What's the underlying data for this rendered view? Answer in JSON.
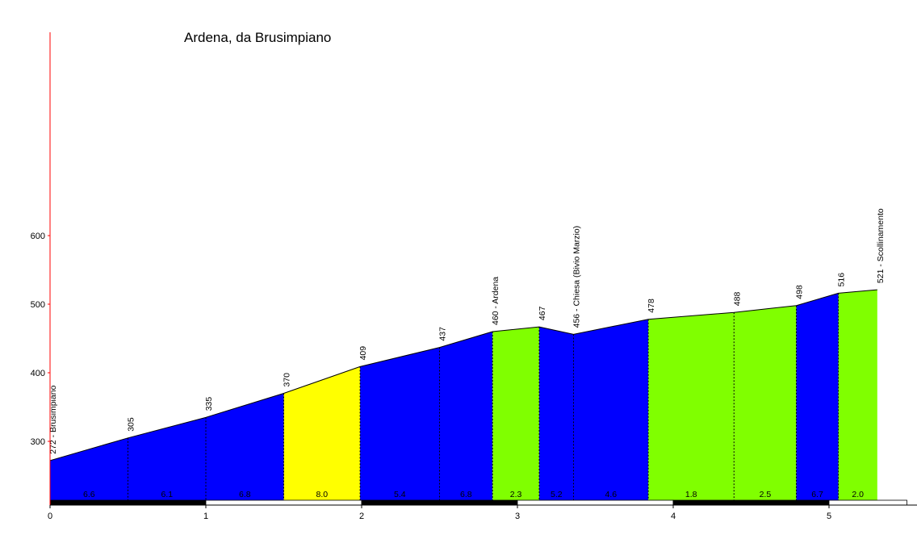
{
  "chart_data": {
    "type": "area",
    "title": "Ardena, da Brusimpiano",
    "xlabel": "",
    "ylabel": "",
    "xlim": [
      0,
      5.5
    ],
    "ylim": [
      258,
      600
    ],
    "x_ticks": [
      0,
      1,
      2,
      3,
      4,
      5
    ],
    "y_ticks": [
      300,
      400,
      500,
      600
    ],
    "profile": [
      {
        "x": 0.0,
        "y": 272,
        "label": "272 - Brusimpiano"
      },
      {
        "x": 0.5,
        "y": 305,
        "label": "305"
      },
      {
        "x": 1.0,
        "y": 335,
        "label": "335"
      },
      {
        "x": 1.5,
        "y": 370,
        "label": "370"
      },
      {
        "x": 1.99,
        "y": 409,
        "label": "409"
      },
      {
        "x": 2.5,
        "y": 437,
        "label": "437"
      },
      {
        "x": 2.84,
        "y": 460,
        "label": "460 - Ardena"
      },
      {
        "x": 3.14,
        "y": 467,
        "label": "467"
      },
      {
        "x": 3.36,
        "y": 456,
        "label": "456 - Chiesa (Bivio Marzio)"
      },
      {
        "x": 3.84,
        "y": 478,
        "label": "478"
      },
      {
        "x": 4.39,
        "y": 488,
        "label": "488"
      },
      {
        "x": 4.79,
        "y": 498,
        "label": "498"
      },
      {
        "x": 5.06,
        "y": 516,
        "label": "516"
      },
      {
        "x": 5.31,
        "y": 521,
        "label": "521 - Scollinamento"
      }
    ],
    "segments": [
      {
        "from": 0.0,
        "to": 0.5,
        "grade": "6.6",
        "color": "#0000ff"
      },
      {
        "from": 0.5,
        "to": 1.0,
        "grade": "6.1",
        "color": "#0000ff"
      },
      {
        "from": 1.0,
        "to": 1.5,
        "grade": "6.8",
        "color": "#0000ff"
      },
      {
        "from": 1.5,
        "to": 1.99,
        "grade": "8.0",
        "color": "#ffff00"
      },
      {
        "from": 1.99,
        "to": 2.5,
        "grade": "5.4",
        "color": "#0000ff"
      },
      {
        "from": 2.5,
        "to": 2.84,
        "grade": "6.8",
        "color": "#0000ff"
      },
      {
        "from": 2.84,
        "to": 3.14,
        "grade": "2.3",
        "color": "#80ff00"
      },
      {
        "from": 3.14,
        "to": 3.36,
        "grade": "5.2",
        "color": "#0000ff"
      },
      {
        "from": 3.36,
        "to": 3.84,
        "grade": "4.6",
        "color": "#0000ff"
      },
      {
        "from": 3.84,
        "to": 4.39,
        "grade": "1.8",
        "color": "#80ff00"
      },
      {
        "from": 4.39,
        "to": 4.79,
        "grade": "2.5",
        "color": "#80ff00"
      },
      {
        "from": 4.79,
        "to": 5.06,
        "grade": "6.7",
        "color": "#0000ff"
      },
      {
        "from": 5.06,
        "to": 5.31,
        "grade": "2.0",
        "color": "#80ff00"
      }
    ],
    "axis_color": "#ff0000",
    "grid": false,
    "legend": "none"
  }
}
